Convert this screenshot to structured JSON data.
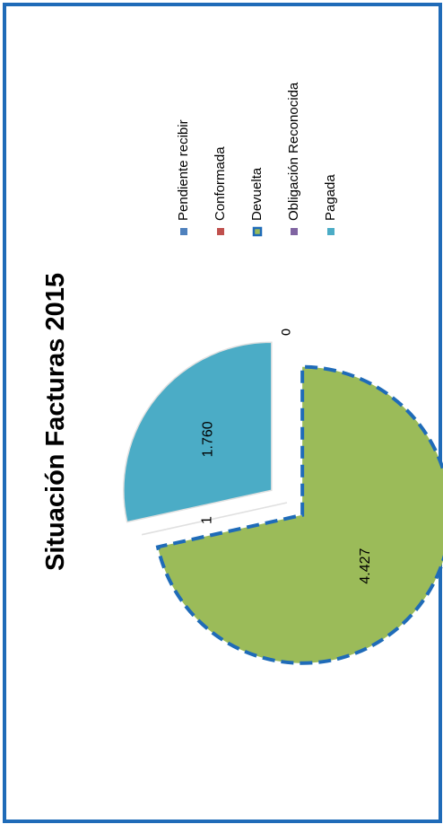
{
  "chart_data": {
    "type": "pie",
    "title": "Situación Facturas 2015",
    "orientation": "rotated-90-clockwise",
    "categories": [
      "Pendiente recibir",
      "Conformada",
      "Devuelta",
      "Obligación Reconocida",
      "Pagada"
    ],
    "values": [
      0,
      0,
      4427,
      1,
      1760
    ],
    "data_labels": [
      "0",
      "0",
      "4.427",
      "1",
      "1.760"
    ],
    "colors": [
      "#4f81bd",
      "#c0504d",
      "#9bbb59",
      "#8064a2",
      "#4bacc6"
    ],
    "exploded": [
      "Devuelta",
      "Pagada"
    ],
    "highlighted": "Devuelta",
    "highlight_style": "dashed-outline",
    "highlight_color": "#1f6bb8",
    "legend_position": "right"
  }
}
